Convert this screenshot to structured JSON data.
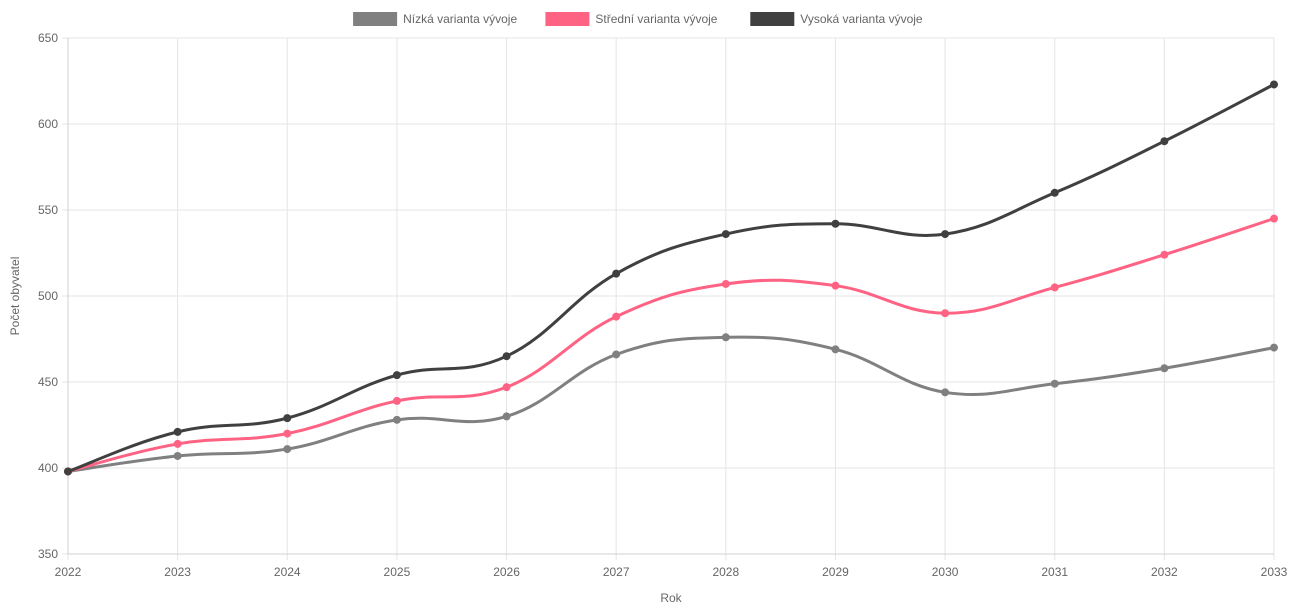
{
  "chart_data": {
    "type": "line",
    "xlabel": "Rok",
    "ylabel": "Počet obyvatel",
    "ylim": [
      350,
      650
    ],
    "yticks": [
      350,
      400,
      450,
      500,
      550,
      600,
      650
    ],
    "x": [
      "2022",
      "2023",
      "2024",
      "2025",
      "2026",
      "2027",
      "2028",
      "2029",
      "2030",
      "2031",
      "2032",
      "2033"
    ],
    "grid": true,
    "legend_position": "top-center",
    "series": [
      {
        "name": "Nízká varianta vývoje",
        "color": "#808080",
        "values": [
          398,
          407,
          411,
          428,
          430,
          466,
          476,
          469,
          444,
          449,
          458,
          470
        ]
      },
      {
        "name": "Střední varianta vývoje",
        "color": "#ff6384",
        "values": [
          398,
          414,
          420,
          439,
          447,
          488,
          507,
          506,
          490,
          505,
          524,
          545
        ]
      },
      {
        "name": "Vysoká varianta vývoje",
        "color": "#404040",
        "values": [
          398,
          421,
          429,
          454,
          465,
          513,
          536,
          542,
          536,
          560,
          590,
          623
        ]
      }
    ]
  }
}
